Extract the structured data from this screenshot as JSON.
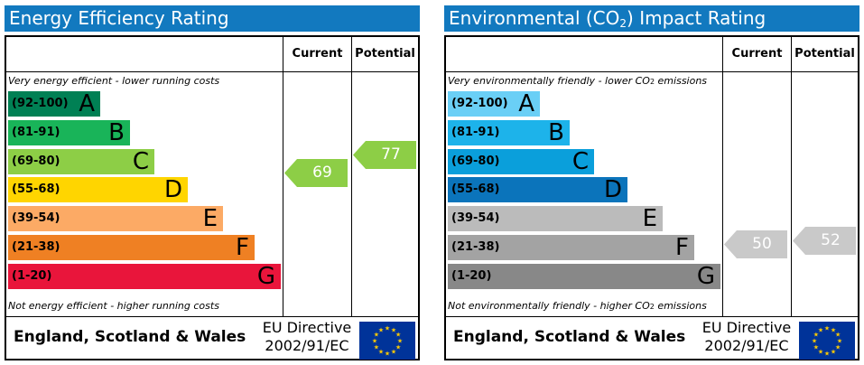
{
  "columns": {
    "current": "Current",
    "potential": "Potential"
  },
  "footer": {
    "region": "England, Scotland & Wales",
    "directive_line1": "EU Directive",
    "directive_line2": "2002/91/EC"
  },
  "colors": {
    "title_bar": "#1279bf",
    "flag": "#003399",
    "flag_stars": "#ffcc00"
  },
  "chart_data": [
    {
      "type": "bar",
      "title": "Energy Efficiency Rating",
      "top_note": "Very energy efficient - lower running costs",
      "bottom_note": "Not energy efficient - higher running costs",
      "bands": [
        {
          "range": "(92-100)",
          "letter": "A",
          "color": "#008054"
        },
        {
          "range": "(81-91)",
          "letter": "B",
          "color": "#19b459"
        },
        {
          "range": "(69-80)",
          "letter": "C",
          "color": "#8dce46"
        },
        {
          "range": "(55-68)",
          "letter": "D",
          "color": "#ffd500"
        },
        {
          "range": "(39-54)",
          "letter": "E",
          "color": "#fcaa65"
        },
        {
          "range": "(21-38)",
          "letter": "F",
          "color": "#ef8023"
        },
        {
          "range": "(1-20)",
          "letter": "G",
          "color": "#e9153b"
        }
      ],
      "current": {
        "value": 69,
        "color": "#8dce46"
      },
      "potential": {
        "value": 77,
        "color": "#8dce46"
      }
    },
    {
      "type": "bar",
      "title": "Environmental (CO2) Impact Rating",
      "top_note": "Very environmentally friendly - lower CO2 emissions",
      "bottom_note": "Not environmentally friendly - higher CO2 emissions",
      "bands": [
        {
          "range": "(92-100)",
          "letter": "A",
          "color": "#6acff6"
        },
        {
          "range": "(81-91)",
          "letter": "B",
          "color": "#1db3ea"
        },
        {
          "range": "(69-80)",
          "letter": "C",
          "color": "#0a9fdb"
        },
        {
          "range": "(55-68)",
          "letter": "D",
          "color": "#0b74bb"
        },
        {
          "range": "(39-54)",
          "letter": "E",
          "color": "#bbbbbb"
        },
        {
          "range": "(21-38)",
          "letter": "F",
          "color": "#a3a3a3"
        },
        {
          "range": "(1-20)",
          "letter": "G",
          "color": "#888888"
        }
      ],
      "current": {
        "value": 50,
        "color": "#c9c9c9"
      },
      "potential": {
        "value": 52,
        "color": "#c9c9c9"
      }
    }
  ]
}
